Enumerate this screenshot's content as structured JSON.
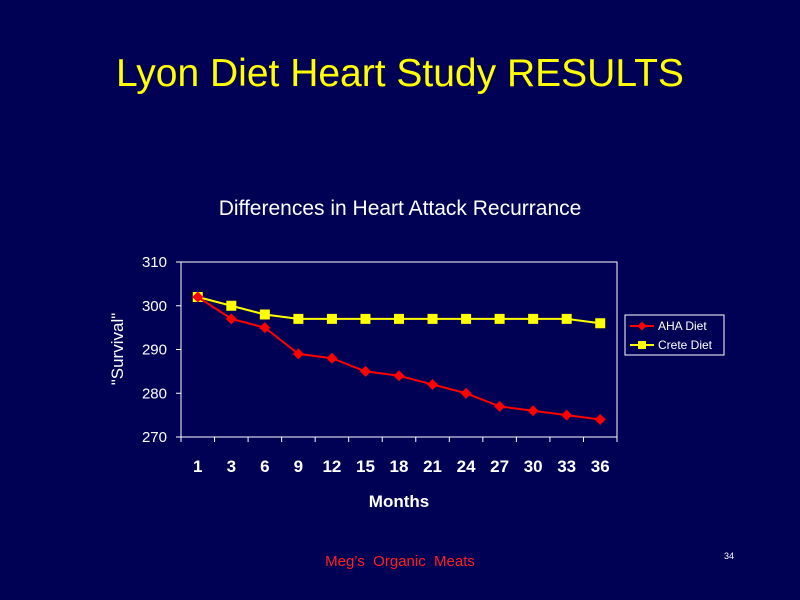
{
  "slide": {
    "title": "Lyon Diet Heart Study RESULTS",
    "footer": "Meg’s  Organic  Meats",
    "slide_number": "34"
  },
  "colors": {
    "background": "#000055",
    "title": "#ffff00",
    "aha_series": "#ff0000",
    "crete_series": "#ffff00",
    "footer": "#ff2020"
  },
  "chart_data": {
    "type": "line",
    "title": "Differences in Heart Attack Recurrance",
    "xlabel": "Months",
    "ylabel": "\"Survival\"",
    "categories": [
      "1",
      "3",
      "6",
      "9",
      "12",
      "15",
      "18",
      "21",
      "24",
      "27",
      "30",
      "33",
      "36"
    ],
    "ylim": [
      270,
      310
    ],
    "yticks": [
      270,
      280,
      290,
      300,
      310
    ],
    "grid": false,
    "legend_position": "right",
    "series": [
      {
        "name": "AHA Diet",
        "color": "#ff0000",
        "marker": "diamond",
        "values": [
          302,
          297,
          295,
          289,
          288,
          285,
          284,
          282,
          280,
          277,
          276,
          275,
          274
        ]
      },
      {
        "name": "Crete Diet",
        "color": "#ffff00",
        "marker": "square",
        "values": [
          302,
          300,
          298,
          297,
          297,
          297,
          297,
          297,
          297,
          297,
          297,
          297,
          296
        ]
      }
    ]
  }
}
